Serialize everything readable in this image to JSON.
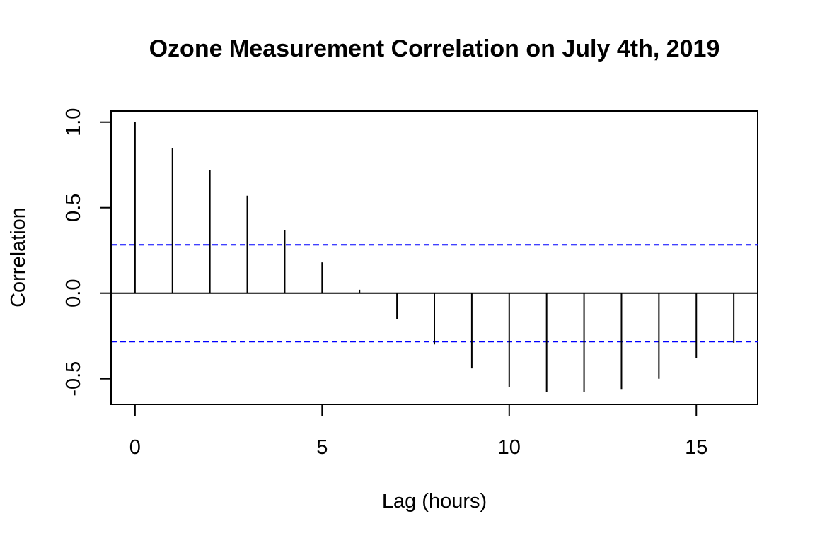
{
  "chart_data": {
    "type": "bar",
    "title": "Ozone Measurement Correlation on July 4th, 2019",
    "xlabel": "Lag (hours)",
    "ylabel": "Correlation",
    "x": [
      0,
      1,
      2,
      3,
      4,
      5,
      6,
      7,
      8,
      9,
      10,
      11,
      12,
      13,
      14,
      15,
      16
    ],
    "values": [
      1.0,
      0.85,
      0.72,
      0.57,
      0.37,
      0.18,
      0.02,
      -0.15,
      -0.3,
      -0.44,
      -0.55,
      -0.58,
      -0.58,
      -0.56,
      -0.5,
      -0.38,
      -0.29
    ],
    "xlim": [
      -0.64,
      16.64
    ],
    "ylim": [
      -0.65,
      1.065
    ],
    "xticks": [
      0,
      5,
      10,
      15
    ],
    "xtick_labels": [
      "0",
      "5",
      "10",
      "15"
    ],
    "yticks": [
      -0.5,
      0.0,
      0.5,
      1.0
    ],
    "ytick_labels": [
      "-0.5",
      "0.0",
      "0.5",
      "1.0"
    ],
    "confidence_bound": 0.283,
    "grid": false,
    "colors": {
      "bars": "#000000",
      "confidence_lines": "#0000ff",
      "zero_line": "#000000"
    }
  }
}
